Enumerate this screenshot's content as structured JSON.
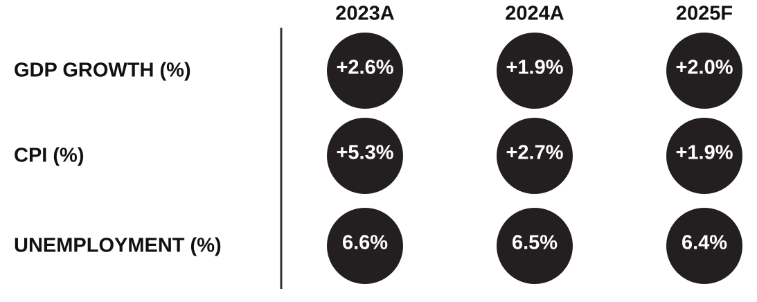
{
  "table": {
    "columns": [
      "2023A",
      "2024A",
      "2025F"
    ],
    "rows": [
      {
        "label": "GDP GROWTH (%)",
        "cells": [
          "+2.6%",
          "+1.9%",
          "+2.0%"
        ]
      },
      {
        "label": "CPI (%)",
        "cells": [
          "+5.3%",
          "+2.7%",
          "+1.9%"
        ]
      },
      {
        "label": "UNEMPLOYMENT (%)",
        "cells": [
          "6.6%",
          "6.5%",
          "6.4%"
        ]
      }
    ]
  }
}
